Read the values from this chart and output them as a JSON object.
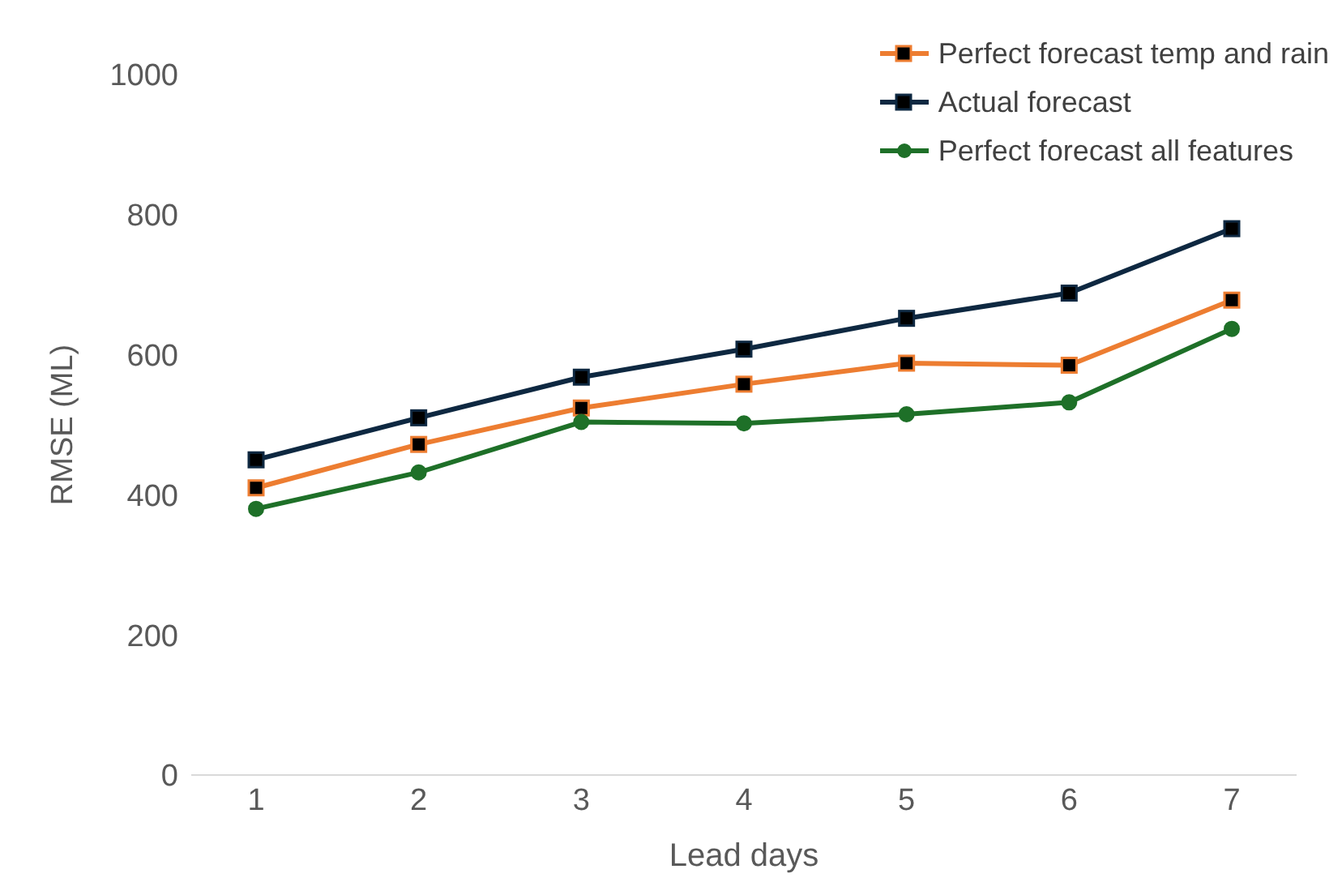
{
  "chart_data": {
    "type": "line",
    "xlabel": "Lead days",
    "ylabel": "RMSE (ML)",
    "categories": [
      "1",
      "2",
      "3",
      "4",
      "5",
      "6",
      "7"
    ],
    "series": [
      {
        "name": "Perfect forecast temp and rain",
        "color": "#ed7d31",
        "marker": "square",
        "values": [
          410,
          472,
          524,
          558,
          588,
          585,
          678
        ]
      },
      {
        "name": "Actual forecast",
        "color": "#0e2841",
        "marker": "square",
        "values": [
          450,
          510,
          568,
          608,
          652,
          688,
          780
        ]
      },
      {
        "name": "Perfect forecast all features",
        "color": "#1e7028",
        "marker": "circle",
        "values": [
          380,
          432,
          504,
          502,
          515,
          532,
          637
        ]
      }
    ],
    "ylim": [
      0,
      1000
    ],
    "yticks": [
      0,
      200,
      400,
      600,
      800,
      1000
    ],
    "grid": false,
    "legend": "top right"
  }
}
